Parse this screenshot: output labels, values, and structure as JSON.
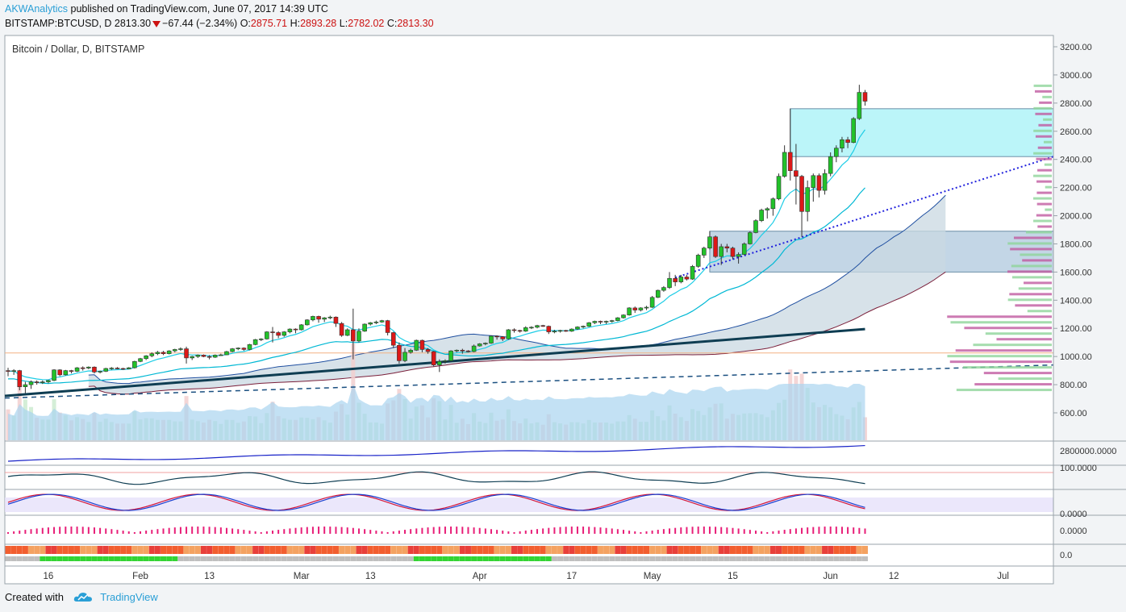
{
  "header": {
    "author": "AKWAnalytics",
    "published": "published on TradingView.com, June 07, 2017 14:39 UTC",
    "symbol": "BITSTAMP:BTCUSD, D",
    "last": "2813.30",
    "change": "−67.44 (−2.34%)",
    "open_label": "O:",
    "open": "2875.71",
    "high_label": "H:",
    "high": "2893.28",
    "low_label": "L:",
    "low": "2782.02",
    "close_label": "C:",
    "close": "2813.30"
  },
  "footer": {
    "created_with": "Created with",
    "brand": "TradingView"
  },
  "colors": {
    "up": "#22c22a",
    "down": "#dd1818",
    "ema_fast": "#1ecde6",
    "ema_slow": "#00b8d4",
    "trend_dark": "#0e3d52",
    "cloud_fill": "#c9d8e2",
    "cloud_edge_top": "#1f4fa0",
    "cloud_edge_bottom": "#7a1f3a",
    "zone_top": "#aaf2f7",
    "zone_mid": "#aac4dc",
    "dotted_trend": "#2222dd",
    "dashed_trend": "#1a4f80",
    "orange_line": "#f4b183",
    "volume": "#a9d4f0",
    "macd": "#1822c8",
    "rsi": "#0e3d52",
    "stoch_k": "#d4163a",
    "stoch_d": "#1a3fcf",
    "histogram": "#e81e78"
  },
  "chart_data": {
    "type": "candlestick",
    "title": "Bitcoin / Dollar, D, BITSTAMP",
    "y_ticks": [
      "3200.00",
      "3000.00",
      "2800.00",
      "2600.00",
      "2400.00",
      "2200.00",
      "2000.00",
      "1800.00",
      "1600.00",
      "1400.00",
      "1200.00",
      "1000.00",
      "800.00",
      "600.00"
    ],
    "ylim": [
      440,
      3300
    ],
    "x_ticks": [
      "16",
      "Feb",
      "13",
      "Mar",
      "13",
      "Apr",
      "17",
      "May",
      "15",
      "Jun",
      "12",
      "Jul"
    ],
    "x_tick_dates": [
      "2017-01-16",
      "2017-02-01",
      "2017-02-13",
      "2017-03-01",
      "2017-03-13",
      "2017-04-01",
      "2017-04-17",
      "2017-05-01",
      "2017-05-15",
      "2017-06-01",
      "2017-06-12",
      "2017-07-01"
    ],
    "date_range": [
      "2017-01-09",
      "2017-07-04"
    ],
    "candles": [
      {
        "d": "2017-01-09",
        "o": 900,
        "h": 920,
        "l": 860,
        "c": 895
      },
      {
        "d": "2017-01-10",
        "o": 895,
        "h": 910,
        "l": 870,
        "c": 900
      },
      {
        "d": "2017-01-11",
        "o": 900,
        "h": 905,
        "l": 760,
        "c": 785
      },
      {
        "d": "2017-01-12",
        "o": 785,
        "h": 820,
        "l": 740,
        "c": 800
      },
      {
        "d": "2017-01-13",
        "o": 800,
        "h": 830,
        "l": 770,
        "c": 820
      },
      {
        "d": "2017-01-14",
        "o": 820,
        "h": 830,
        "l": 800,
        "c": 815
      },
      {
        "d": "2017-01-15",
        "o": 815,
        "h": 830,
        "l": 805,
        "c": 820
      },
      {
        "d": "2017-01-16",
        "o": 820,
        "h": 835,
        "l": 810,
        "c": 830
      },
      {
        "d": "2017-01-17",
        "o": 830,
        "h": 910,
        "l": 825,
        "c": 905
      },
      {
        "d": "2017-01-18",
        "o": 905,
        "h": 910,
        "l": 860,
        "c": 870
      },
      {
        "d": "2017-01-19",
        "o": 870,
        "h": 905,
        "l": 865,
        "c": 900
      },
      {
        "d": "2017-01-20",
        "o": 900,
        "h": 905,
        "l": 880,
        "c": 895
      },
      {
        "d": "2017-01-21",
        "o": 895,
        "h": 925,
        "l": 890,
        "c": 920
      },
      {
        "d": "2017-01-22",
        "o": 920,
        "h": 930,
        "l": 900,
        "c": 918
      },
      {
        "d": "2017-01-23",
        "o": 918,
        "h": 930,
        "l": 910,
        "c": 925
      },
      {
        "d": "2017-01-24",
        "o": 925,
        "h": 930,
        "l": 880,
        "c": 890
      },
      {
        "d": "2017-01-25",
        "o": 890,
        "h": 900,
        "l": 880,
        "c": 895
      },
      {
        "d": "2017-01-26",
        "o": 895,
        "h": 920,
        "l": 890,
        "c": 915
      },
      {
        "d": "2017-01-27",
        "o": 915,
        "h": 925,
        "l": 905,
        "c": 918
      },
      {
        "d": "2017-01-28",
        "o": 918,
        "h": 925,
        "l": 910,
        "c": 915
      },
      {
        "d": "2017-01-29",
        "o": 915,
        "h": 920,
        "l": 905,
        "c": 912
      },
      {
        "d": "2017-01-30",
        "o": 912,
        "h": 925,
        "l": 910,
        "c": 920
      },
      {
        "d": "2017-01-31",
        "o": 920,
        "h": 970,
        "l": 915,
        "c": 965
      },
      {
        "d": "2017-02-01",
        "o": 965,
        "h": 990,
        "l": 960,
        "c": 985
      },
      {
        "d": "2017-02-02",
        "o": 985,
        "h": 1010,
        "l": 975,
        "c": 1005
      },
      {
        "d": "2017-02-03",
        "o": 1005,
        "h": 1030,
        "l": 995,
        "c": 1020
      },
      {
        "d": "2017-02-04",
        "o": 1020,
        "h": 1040,
        "l": 1010,
        "c": 1030
      },
      {
        "d": "2017-02-05",
        "o": 1030,
        "h": 1040,
        "l": 1010,
        "c": 1020
      },
      {
        "d": "2017-02-06",
        "o": 1020,
        "h": 1045,
        "l": 1015,
        "c": 1040
      },
      {
        "d": "2017-02-07",
        "o": 1040,
        "h": 1055,
        "l": 1030,
        "c": 1050
      },
      {
        "d": "2017-02-08",
        "o": 1050,
        "h": 1065,
        "l": 1040,
        "c": 1055
      },
      {
        "d": "2017-02-09",
        "o": 1055,
        "h": 1070,
        "l": 950,
        "c": 990
      },
      {
        "d": "2017-02-10",
        "o": 990,
        "h": 1005,
        "l": 975,
        "c": 1000
      },
      {
        "d": "2017-02-11",
        "o": 1000,
        "h": 1015,
        "l": 990,
        "c": 1010
      },
      {
        "d": "2017-02-12",
        "o": 1010,
        "h": 1015,
        "l": 995,
        "c": 1000
      },
      {
        "d": "2017-02-13",
        "o": 1000,
        "h": 1010,
        "l": 980,
        "c": 995
      },
      {
        "d": "2017-02-14",
        "o": 995,
        "h": 1015,
        "l": 990,
        "c": 1010
      },
      {
        "d": "2017-02-15",
        "o": 1010,
        "h": 1020,
        "l": 1005,
        "c": 1012
      },
      {
        "d": "2017-02-16",
        "o": 1012,
        "h": 1040,
        "l": 1010,
        "c": 1035
      },
      {
        "d": "2017-02-17",
        "o": 1035,
        "h": 1060,
        "l": 1030,
        "c": 1055
      },
      {
        "d": "2017-02-18",
        "o": 1055,
        "h": 1065,
        "l": 1045,
        "c": 1060
      },
      {
        "d": "2017-02-19",
        "o": 1060,
        "h": 1065,
        "l": 1040,
        "c": 1050
      },
      {
        "d": "2017-02-20",
        "o": 1050,
        "h": 1090,
        "l": 1045,
        "c": 1085
      },
      {
        "d": "2017-02-21",
        "o": 1085,
        "h": 1125,
        "l": 1080,
        "c": 1120
      },
      {
        "d": "2017-02-22",
        "o": 1120,
        "h": 1130,
        "l": 1110,
        "c": 1125
      },
      {
        "d": "2017-02-23",
        "o": 1125,
        "h": 1180,
        "l": 1120,
        "c": 1175
      },
      {
        "d": "2017-02-24",
        "o": 1175,
        "h": 1210,
        "l": 1100,
        "c": 1170
      },
      {
        "d": "2017-02-25",
        "o": 1170,
        "h": 1180,
        "l": 1130,
        "c": 1150
      },
      {
        "d": "2017-02-26",
        "o": 1150,
        "h": 1180,
        "l": 1140,
        "c": 1175
      },
      {
        "d": "2017-02-27",
        "o": 1175,
        "h": 1200,
        "l": 1165,
        "c": 1195
      },
      {
        "d": "2017-02-28",
        "o": 1195,
        "h": 1200,
        "l": 1165,
        "c": 1190
      },
      {
        "d": "2017-03-01",
        "o": 1190,
        "h": 1230,
        "l": 1185,
        "c": 1225
      },
      {
        "d": "2017-03-02",
        "o": 1225,
        "h": 1265,
        "l": 1220,
        "c": 1260
      },
      {
        "d": "2017-03-03",
        "o": 1260,
        "h": 1290,
        "l": 1250,
        "c": 1285
      },
      {
        "d": "2017-03-04",
        "o": 1285,
        "h": 1290,
        "l": 1240,
        "c": 1265
      },
      {
        "d": "2017-03-05",
        "o": 1265,
        "h": 1280,
        "l": 1245,
        "c": 1275
      },
      {
        "d": "2017-03-06",
        "o": 1275,
        "h": 1290,
        "l": 1265,
        "c": 1280
      },
      {
        "d": "2017-03-07",
        "o": 1280,
        "h": 1285,
        "l": 1210,
        "c": 1235
      },
      {
        "d": "2017-03-08",
        "o": 1235,
        "h": 1245,
        "l": 1140,
        "c": 1150
      },
      {
        "d": "2017-03-09",
        "o": 1150,
        "h": 1200,
        "l": 1145,
        "c": 1190
      },
      {
        "d": "2017-03-10",
        "o": 1190,
        "h": 1340,
        "l": 980,
        "c": 1110
      },
      {
        "d": "2017-03-11",
        "o": 1110,
        "h": 1200,
        "l": 1100,
        "c": 1180
      },
      {
        "d": "2017-03-12",
        "o": 1180,
        "h": 1235,
        "l": 1175,
        "c": 1230
      },
      {
        "d": "2017-03-13",
        "o": 1230,
        "h": 1245,
        "l": 1220,
        "c": 1240
      },
      {
        "d": "2017-03-14",
        "o": 1240,
        "h": 1255,
        "l": 1230,
        "c": 1245
      },
      {
        "d": "2017-03-15",
        "o": 1245,
        "h": 1260,
        "l": 1240,
        "c": 1255
      },
      {
        "d": "2017-03-16",
        "o": 1255,
        "h": 1260,
        "l": 1150,
        "c": 1170
      },
      {
        "d": "2017-03-17",
        "o": 1170,
        "h": 1175,
        "l": 1060,
        "c": 1080
      },
      {
        "d": "2017-03-18",
        "o": 1080,
        "h": 1100,
        "l": 950,
        "c": 970
      },
      {
        "d": "2017-03-19",
        "o": 970,
        "h": 1060,
        "l": 960,
        "c": 1030
      },
      {
        "d": "2017-03-20",
        "o": 1030,
        "h": 1055,
        "l": 1020,
        "c": 1045
      },
      {
        "d": "2017-03-21",
        "o": 1045,
        "h": 1120,
        "l": 1040,
        "c": 1115
      },
      {
        "d": "2017-03-22",
        "o": 1115,
        "h": 1120,
        "l": 1030,
        "c": 1050
      },
      {
        "d": "2017-03-23",
        "o": 1050,
        "h": 1060,
        "l": 1020,
        "c": 1035
      },
      {
        "d": "2017-03-24",
        "o": 1035,
        "h": 1040,
        "l": 930,
        "c": 940
      },
      {
        "d": "2017-03-25",
        "o": 940,
        "h": 980,
        "l": 890,
        "c": 965
      },
      {
        "d": "2017-03-26",
        "o": 965,
        "h": 980,
        "l": 950,
        "c": 970
      },
      {
        "d": "2017-03-27",
        "o": 970,
        "h": 1045,
        "l": 965,
        "c": 1040
      },
      {
        "d": "2017-03-28",
        "o": 1040,
        "h": 1050,
        "l": 1030,
        "c": 1045
      },
      {
        "d": "2017-03-29",
        "o": 1045,
        "h": 1055,
        "l": 1020,
        "c": 1040
      },
      {
        "d": "2017-03-30",
        "o": 1040,
        "h": 1045,
        "l": 1030,
        "c": 1035
      },
      {
        "d": "2017-03-31",
        "o": 1035,
        "h": 1085,
        "l": 1030,
        "c": 1075
      },
      {
        "d": "2017-04-01",
        "o": 1075,
        "h": 1095,
        "l": 1070,
        "c": 1090
      },
      {
        "d": "2017-04-02",
        "o": 1090,
        "h": 1100,
        "l": 1080,
        "c": 1095
      },
      {
        "d": "2017-04-03",
        "o": 1095,
        "h": 1150,
        "l": 1090,
        "c": 1145
      },
      {
        "d": "2017-04-04",
        "o": 1145,
        "h": 1150,
        "l": 1120,
        "c": 1140
      },
      {
        "d": "2017-04-05",
        "o": 1140,
        "h": 1145,
        "l": 1110,
        "c": 1125
      },
      {
        "d": "2017-04-06",
        "o": 1125,
        "h": 1195,
        "l": 1120,
        "c": 1190
      },
      {
        "d": "2017-04-07",
        "o": 1190,
        "h": 1200,
        "l": 1170,
        "c": 1185
      },
      {
        "d": "2017-04-08",
        "o": 1185,
        "h": 1190,
        "l": 1170,
        "c": 1180
      },
      {
        "d": "2017-04-09",
        "o": 1180,
        "h": 1215,
        "l": 1175,
        "c": 1205
      },
      {
        "d": "2017-04-10",
        "o": 1205,
        "h": 1215,
        "l": 1195,
        "c": 1208
      },
      {
        "d": "2017-04-11",
        "o": 1208,
        "h": 1225,
        "l": 1200,
        "c": 1220
      },
      {
        "d": "2017-04-12",
        "o": 1220,
        "h": 1225,
        "l": 1210,
        "c": 1215
      },
      {
        "d": "2017-04-13",
        "o": 1215,
        "h": 1220,
        "l": 1160,
        "c": 1175
      },
      {
        "d": "2017-04-14",
        "o": 1175,
        "h": 1190,
        "l": 1165,
        "c": 1180
      },
      {
        "d": "2017-04-15",
        "o": 1180,
        "h": 1190,
        "l": 1170,
        "c": 1185
      },
      {
        "d": "2017-04-16",
        "o": 1185,
        "h": 1190,
        "l": 1175,
        "c": 1180
      },
      {
        "d": "2017-04-17",
        "o": 1180,
        "h": 1200,
        "l": 1175,
        "c": 1195
      },
      {
        "d": "2017-04-18",
        "o": 1195,
        "h": 1215,
        "l": 1190,
        "c": 1210
      },
      {
        "d": "2017-04-19",
        "o": 1210,
        "h": 1220,
        "l": 1200,
        "c": 1215
      },
      {
        "d": "2017-04-20",
        "o": 1215,
        "h": 1245,
        "l": 1210,
        "c": 1240
      },
      {
        "d": "2017-04-21",
        "o": 1240,
        "h": 1255,
        "l": 1230,
        "c": 1250
      },
      {
        "d": "2017-04-22",
        "o": 1250,
        "h": 1255,
        "l": 1230,
        "c": 1245
      },
      {
        "d": "2017-04-23",
        "o": 1245,
        "h": 1255,
        "l": 1230,
        "c": 1250
      },
      {
        "d": "2017-04-24",
        "o": 1250,
        "h": 1260,
        "l": 1240,
        "c": 1255
      },
      {
        "d": "2017-04-25",
        "o": 1255,
        "h": 1280,
        "l": 1250,
        "c": 1275
      },
      {
        "d": "2017-04-26",
        "o": 1275,
        "h": 1300,
        "l": 1270,
        "c": 1295
      },
      {
        "d": "2017-04-27",
        "o": 1295,
        "h": 1350,
        "l": 1290,
        "c": 1345
      },
      {
        "d": "2017-04-28",
        "o": 1345,
        "h": 1355,
        "l": 1310,
        "c": 1330
      },
      {
        "d": "2017-04-29",
        "o": 1330,
        "h": 1350,
        "l": 1320,
        "c": 1345
      },
      {
        "d": "2017-04-30",
        "o": 1345,
        "h": 1360,
        "l": 1330,
        "c": 1350
      },
      {
        "d": "2017-05-01",
        "o": 1350,
        "h": 1430,
        "l": 1345,
        "c": 1420
      },
      {
        "d": "2017-05-02",
        "o": 1420,
        "h": 1475,
        "l": 1415,
        "c": 1470
      },
      {
        "d": "2017-05-03",
        "o": 1470,
        "h": 1500,
        "l": 1460,
        "c": 1490
      },
      {
        "d": "2017-05-04",
        "o": 1490,
        "h": 1600,
        "l": 1480,
        "c": 1555
      },
      {
        "d": "2017-05-05",
        "o": 1555,
        "h": 1580,
        "l": 1500,
        "c": 1530
      },
      {
        "d": "2017-05-06",
        "o": 1530,
        "h": 1580,
        "l": 1520,
        "c": 1565
      },
      {
        "d": "2017-05-07",
        "o": 1565,
        "h": 1580,
        "l": 1540,
        "c": 1550
      },
      {
        "d": "2017-05-08",
        "o": 1550,
        "h": 1650,
        "l": 1545,
        "c": 1640
      },
      {
        "d": "2017-05-09",
        "o": 1640,
        "h": 1730,
        "l": 1630,
        "c": 1720
      },
      {
        "d": "2017-05-10",
        "o": 1720,
        "h": 1780,
        "l": 1700,
        "c": 1770
      },
      {
        "d": "2017-05-11",
        "o": 1770,
        "h": 1890,
        "l": 1760,
        "c": 1850
      },
      {
        "d": "2017-05-12",
        "o": 1850,
        "h": 1860,
        "l": 1700,
        "c": 1710
      },
      {
        "d": "2017-05-13",
        "o": 1710,
        "h": 1800,
        "l": 1650,
        "c": 1780
      },
      {
        "d": "2017-05-14",
        "o": 1780,
        "h": 1800,
        "l": 1740,
        "c": 1770
      },
      {
        "d": "2017-05-15",
        "o": 1770,
        "h": 1780,
        "l": 1690,
        "c": 1710
      },
      {
        "d": "2017-05-16",
        "o": 1710,
        "h": 1740,
        "l": 1660,
        "c": 1725
      },
      {
        "d": "2017-05-17",
        "o": 1725,
        "h": 1810,
        "l": 1720,
        "c": 1800
      },
      {
        "d": "2017-05-18",
        "o": 1800,
        "h": 1890,
        "l": 1795,
        "c": 1880
      },
      {
        "d": "2017-05-19",
        "o": 1880,
        "h": 1975,
        "l": 1875,
        "c": 1965
      },
      {
        "d": "2017-05-20",
        "o": 1965,
        "h": 2050,
        "l": 1955,
        "c": 2040
      },
      {
        "d": "2017-05-21",
        "o": 2040,
        "h": 2060,
        "l": 1980,
        "c": 2050
      },
      {
        "d": "2017-05-22",
        "o": 2050,
        "h": 2130,
        "l": 2000,
        "c": 2120
      },
      {
        "d": "2017-05-23",
        "o": 2120,
        "h": 2300,
        "l": 2110,
        "c": 2280
      },
      {
        "d": "2017-05-24",
        "o": 2280,
        "h": 2500,
        "l": 2270,
        "c": 2450
      },
      {
        "d": "2017-05-25",
        "o": 2450,
        "h": 2760,
        "l": 2250,
        "c": 2320
      },
      {
        "d": "2017-05-26",
        "o": 2320,
        "h": 2510,
        "l": 2080,
        "c": 2280
      },
      {
        "d": "2017-05-27",
        "o": 2280,
        "h": 2290,
        "l": 1850,
        "c": 2030
      },
      {
        "d": "2017-05-28",
        "o": 2030,
        "h": 2250,
        "l": 1960,
        "c": 2200
      },
      {
        "d": "2017-05-29",
        "o": 2200,
        "h": 2300,
        "l": 2100,
        "c": 2285
      },
      {
        "d": "2017-05-30",
        "o": 2285,
        "h": 2300,
        "l": 2130,
        "c": 2180
      },
      {
        "d": "2017-05-31",
        "o": 2180,
        "h": 2330,
        "l": 2150,
        "c": 2300
      },
      {
        "d": "2017-06-01",
        "o": 2300,
        "h": 2450,
        "l": 2280,
        "c": 2420
      },
      {
        "d": "2017-06-02",
        "o": 2420,
        "h": 2500,
        "l": 2380,
        "c": 2480
      },
      {
        "d": "2017-06-03",
        "o": 2480,
        "h": 2560,
        "l": 2450,
        "c": 2540
      },
      {
        "d": "2017-06-04",
        "o": 2540,
        "h": 2560,
        "l": 2480,
        "c": 2520
      },
      {
        "d": "2017-06-05",
        "o": 2520,
        "h": 2700,
        "l": 2515,
        "c": 2690
      },
      {
        "d": "2017-06-06",
        "o": 2690,
        "h": 2930,
        "l": 2680,
        "c": 2876
      },
      {
        "d": "2017-06-07",
        "o": 2875.71,
        "h": 2893.28,
        "l": 2782.02,
        "c": 2813.3
      }
    ]
  },
  "indicator_panels": {
    "panel1_label": "2800000.0000",
    "panel2_label": "100.0000",
    "panel3_label": "0.0000",
    "panel4_label": "0.0000",
    "panel5_label": "0.0"
  }
}
